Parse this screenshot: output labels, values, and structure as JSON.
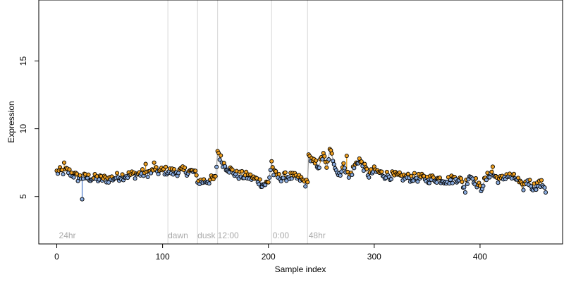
{
  "chart_data": {
    "type": "scatter",
    "title": "",
    "xlabel": "Sample index",
    "ylabel": "Expression",
    "xlim": [
      -17,
      478
    ],
    "ylim": [
      1.5,
      19.5
    ],
    "x_ticks": [
      0,
      100,
      200,
      300,
      400
    ],
    "y_ticks": [
      5,
      10,
      15
    ],
    "grid": false,
    "point_style": "open circle, black outline, fill colored by deviation from smooth trend",
    "colors": {
      "above_trend": "#f0a020",
      "below_trend": "#88aadd",
      "stem_above": "#e89a10",
      "stem_below": "#4a78c8",
      "trend": "#999999",
      "divider": "#d6d6d6",
      "segment_label": "#aaaaaa"
    },
    "segments": [
      {
        "label": "24hr",
        "x": 2
      },
      {
        "label": "dawn",
        "x": 105
      },
      {
        "label": "dusk",
        "x": 133
      },
      {
        "label": "12:00",
        "x": 152
      },
      {
        "label": "0:00",
        "x": 204
      },
      {
        "label": "48hr",
        "x": 238
      }
    ],
    "dividers": [
      105,
      133,
      152,
      203,
      237
    ],
    "anchors": [
      [
        0,
        6.8
      ],
      [
        10,
        6.9
      ],
      [
        20,
        6.4
      ],
      [
        30,
        6.4
      ],
      [
        40,
        6.3
      ],
      [
        50,
        6.3
      ],
      [
        60,
        6.5
      ],
      [
        70,
        6.6
      ],
      [
        80,
        6.7
      ],
      [
        90,
        6.8
      ],
      [
        100,
        6.9
      ],
      [
        105,
        6.9
      ],
      [
        110,
        6.8
      ],
      [
        120,
        6.9
      ],
      [
        130,
        6.8
      ],
      [
        134,
        6.1
      ],
      [
        140,
        6.15
      ],
      [
        150,
        6.3
      ],
      [
        152,
        8.3
      ],
      [
        156,
        7.6
      ],
      [
        160,
        7.2
      ],
      [
        170,
        6.6
      ],
      [
        180,
        6.5
      ],
      [
        190,
        6.2
      ],
      [
        195,
        5.9
      ],
      [
        200,
        6.0
      ],
      [
        203,
        7.5
      ],
      [
        205,
        6.7
      ],
      [
        210,
        6.4
      ],
      [
        220,
        6.5
      ],
      [
        230,
        6.3
      ],
      [
        237,
        5.9
      ],
      [
        238,
        8.0
      ],
      [
        242,
        7.5
      ],
      [
        248,
        7.3
      ],
      [
        252,
        8.1
      ],
      [
        255,
        7.0
      ],
      [
        258,
        8.4
      ],
      [
        262,
        7.6
      ],
      [
        266,
        6.6
      ],
      [
        272,
        7.3
      ],
      [
        276,
        6.4
      ],
      [
        280,
        7.0
      ],
      [
        285,
        7.7
      ],
      [
        290,
        7.2
      ],
      [
        295,
        6.6
      ],
      [
        300,
        6.9
      ],
      [
        310,
        6.6
      ],
      [
        320,
        6.5
      ],
      [
        330,
        6.4
      ],
      [
        340,
        6.4
      ],
      [
        350,
        6.3
      ],
      [
        360,
        6.3
      ],
      [
        370,
        6.2
      ],
      [
        380,
        6.4
      ],
      [
        385,
        5.7
      ],
      [
        390,
        6.6
      ],
      [
        395,
        6.2
      ],
      [
        400,
        5.6
      ],
      [
        405,
        6.2
      ],
      [
        410,
        6.8
      ],
      [
        415,
        6.4
      ],
      [
        420,
        6.2
      ],
      [
        425,
        6.6
      ],
      [
        430,
        6.4
      ],
      [
        435,
        6.3
      ],
      [
        440,
        5.6
      ],
      [
        445,
        6.2
      ],
      [
        450,
        5.7
      ],
      [
        455,
        5.9
      ],
      [
        460,
        5.9
      ],
      [
        462,
        5.5
      ]
    ],
    "notable_points": [
      {
        "x": 7,
        "y": 7.5
      },
      {
        "x": 24,
        "y": 4.8
      },
      {
        "x": 84,
        "y": 7.4
      },
      {
        "x": 92,
        "y": 7.5
      },
      {
        "x": 152,
        "y": 8.35
      },
      {
        "x": 153,
        "y": 8.2
      },
      {
        "x": 203,
        "y": 7.6
      },
      {
        "x": 238,
        "y": 8.1
      },
      {
        "x": 252,
        "y": 8.2
      },
      {
        "x": 258,
        "y": 8.5
      },
      {
        "x": 274,
        "y": 8.0
      },
      {
        "x": 286,
        "y": 7.8
      },
      {
        "x": 386,
        "y": 5.3
      },
      {
        "x": 401,
        "y": 5.4
      },
      {
        "x": 412,
        "y": 7.2
      },
      {
        "x": 462,
        "y": 5.3
      }
    ],
    "n_points": 463
  }
}
